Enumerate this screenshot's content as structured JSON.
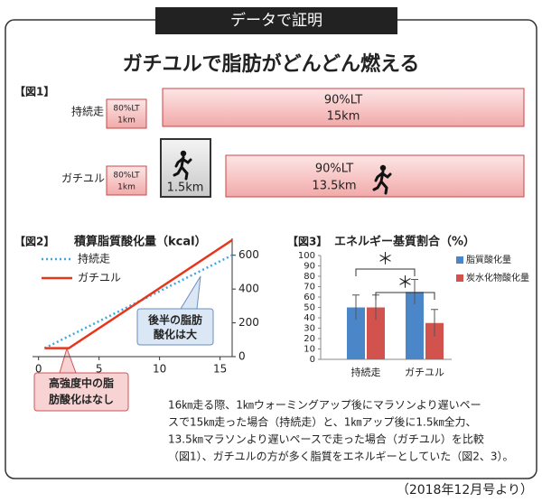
{
  "header": {
    "banner": "データで証明",
    "title": "ガチユルで脂肪がどんどん燃える"
  },
  "fig1": {
    "label": "【図1】",
    "rows": [
      {
        "name": "持続走",
        "warmup": [
          "80%LT",
          "1km"
        ],
        "main": [
          "90%LT",
          "15km"
        ]
      },
      {
        "name": "ガチユル",
        "warmup": [
          "80%LT",
          "1km"
        ],
        "sprint": "1.5km",
        "main": [
          "90%LT",
          "13.5km"
        ]
      }
    ]
  },
  "chart_data": [
    {
      "type": "line",
      "figure_label": "【図2】",
      "title": "積算脂質酸化量（kcal）",
      "series": [
        {
          "name": "持続走",
          "color": "#3fa9dd",
          "style": "dotted",
          "x": [
            0.5,
            16
          ],
          "values": [
            50,
            600
          ]
        },
        {
          "name": "ガチユル",
          "color": "#e8361d",
          "style": "solid",
          "x": [
            0.5,
            2.5,
            16
          ],
          "values": [
            50,
            50,
            690
          ]
        }
      ],
      "xlim": [
        -0.5,
        16
      ],
      "xticks": [
        0,
        5,
        10,
        15
      ],
      "ylim": [
        0,
        700
      ],
      "yticks": [
        0,
        200,
        400,
        600
      ],
      "annotations": [
        [
          "後半の脂肪",
          "酸化は大"
        ],
        [
          "高強度中の脂",
          "肪酸化はなし"
        ]
      ]
    },
    {
      "type": "bar",
      "figure_label": "【図3】",
      "title": "エネルギー基質割合（%）",
      "categories": [
        "持続走",
        "ガチユル"
      ],
      "series": [
        {
          "name": "脂質酸化量",
          "color": "#4a86c8",
          "values": [
            50,
            65
          ],
          "errors": [
            12,
            12
          ]
        },
        {
          "name": "炭水化物酸化量",
          "color": "#d2524e",
          "values": [
            50,
            35
          ],
          "errors": [
            12,
            13
          ]
        }
      ],
      "ylim": [
        0,
        100
      ],
      "yticks": [
        0,
        10,
        20,
        30,
        40,
        50,
        60,
        70,
        80,
        90,
        100
      ],
      "significance": [
        "＊",
        "＊"
      ]
    }
  ],
  "description": {
    "lines": [
      "16㎞走る際、1㎞ウォーミングアップ後にマラソンより遅いペー",
      "スで15㎞走った場合（持続走）と、1㎞アップ後に1.5㎞全力、",
      "13.5㎞マラソンより遅いペースで走った場合（ガチユル）を比較",
      "（図1）、ガチユルの方が多く脂質をエネルギーとしていた（図2、3）。"
    ]
  },
  "source": "（2018年12月号より）"
}
